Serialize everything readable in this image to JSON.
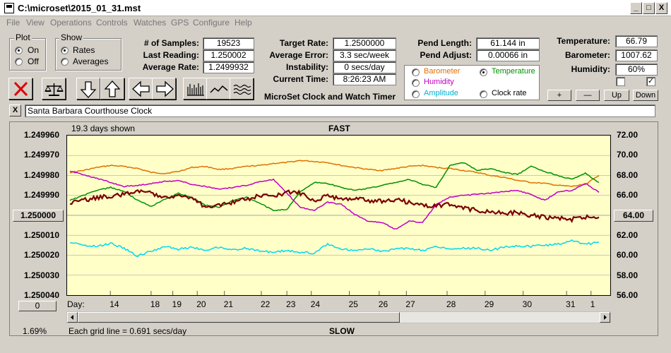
{
  "window": {
    "title": "C:\\microset\\2015_01_31.mst",
    "min": "_",
    "max": "□",
    "close": "X"
  },
  "menu": [
    "File",
    "View",
    "Operations",
    "Controls",
    "Watches",
    "GPS",
    "Configure",
    "Help"
  ],
  "plot_group": {
    "label": "Plot",
    "on": "On",
    "off": "Off"
  },
  "show_group": {
    "label": "Show",
    "rates": "Rates",
    "averages": "Averages"
  },
  "stats": {
    "samples_label": "# of Samples:",
    "samples": "19523",
    "last_label": "Last Reading:",
    "last": "1.250002",
    "avg_label": "Average Rate:",
    "avg": "1.2499932"
  },
  "rates": {
    "target_label": "Target Rate:",
    "target": "1.2500000",
    "error_label": "Average Error:",
    "error": "3.3 sec/week",
    "instab_label": "Instability:",
    "instab": "0 secs/day",
    "time_label": "Current Time:",
    "time": "8:26:23 AM"
  },
  "pend": {
    "length_label": "Pend Length:",
    "length": "61.144 in",
    "adjust_label": "Pend Adjust:",
    "adjust": "0.00066 in"
  },
  "env": {
    "temp_label": "Temperature:",
    "temp": "66.79",
    "baro_label": "Barometer:",
    "baro": "1007.62",
    "hum_label": "Humidity:",
    "hum": "60%"
  },
  "overlay": {
    "barometer": "Barometer",
    "temperature": "Temperature",
    "humidity": "Humidity",
    "amplitude": "Amplitude",
    "clockrate": "Clock rate",
    "colors": {
      "barometer": "#e07000",
      "temperature": "#009000",
      "humidity": "#c000c0",
      "amplitude": "#00b0d0",
      "clockrate": "#000000"
    }
  },
  "adjust_buttons": {
    "plus": "+",
    "minus": "—",
    "up": "Up",
    "down": "Down",
    "check2": "✓"
  },
  "app_name": "MicroSet Clock and Watch Timer",
  "clock_name": "Santa Barbara Courthouse Clock",
  "clear_button": "X",
  "plot": {
    "days_shown": "19.3 days shown",
    "fast": "FAST",
    "slow": "SLOW",
    "grid_note": "Each grid line = 0.691 secs/day",
    "pct": "1.69%",
    "center_button": "1.250000",
    "right_button": "64.00",
    "zero_button": "0",
    "day_label": "Day:"
  },
  "chart_data": {
    "type": "line",
    "y_left_ticks": [
      "1.249960",
      "1.249970",
      "1.249980",
      "1.249990",
      "1.250000",
      "1.250010",
      "1.250020",
      "1.250030",
      "1.250040"
    ],
    "y_right_ticks": [
      "72.00",
      "70.00",
      "68.00",
      "66.00",
      "64.00",
      "62.00",
      "60.00",
      "58.00",
      "56.00"
    ],
    "x_ticks": [
      "14",
      "18",
      "19",
      "20",
      "21",
      "22",
      "23",
      "24",
      "25",
      "26",
      "27",
      "28",
      "29",
      "30",
      "31",
      "1"
    ],
    "x_tick_pos": [
      0.09,
      0.165,
      0.205,
      0.25,
      0.3,
      0.368,
      0.415,
      0.46,
      0.53,
      0.585,
      0.635,
      0.71,
      0.78,
      0.85,
      0.93,
      0.975
    ],
    "series": [
      {
        "color": "#e07000",
        "values": [
          68.3,
          68.5,
          68.8,
          69.0,
          68.9,
          68.7,
          68.3,
          68.2,
          68.4,
          68.8,
          68.9,
          68.6,
          68.7,
          68.9,
          69.0,
          69.2,
          69.3,
          69.5,
          69.4,
          69.3,
          69.0,
          68.8,
          68.6,
          68.5,
          68.7,
          68.9,
          69.0,
          68.8,
          68.7,
          68.5,
          68.3,
          68.0,
          67.8,
          67.5,
          67.3,
          67.2,
          67.0,
          66.9,
          67.1,
          68.0
        ]
      },
      {
        "color": "#009000",
        "values": [
          65.5,
          66.0,
          66.5,
          66.8,
          66.4,
          65.5,
          64.9,
          65.6,
          66.2,
          65.8,
          65.0,
          64.8,
          65.5,
          65.8,
          65.2,
          64.5,
          64.6,
          66.4,
          67.3,
          67.2,
          66.8,
          66.5,
          66.7,
          67.0,
          67.3,
          67.6,
          67.1,
          66.8,
          69.0,
          69.3,
          68.5,
          68.7,
          68.3,
          68.1,
          68.9,
          68.4,
          68.0,
          67.6,
          68.2,
          67.3
        ]
      },
      {
        "color": "#c000c0",
        "values": [
          68.4,
          68.1,
          67.7,
          67.3,
          66.9,
          67.0,
          67.2,
          67.4,
          67.5,
          67.1,
          66.9,
          66.6,
          66.8,
          67.0,
          67.4,
          67.6,
          66.2,
          64.8,
          64.5,
          65.3,
          65.1,
          64.1,
          63.4,
          63.3,
          62.6,
          63.4,
          63.3,
          65.1,
          65.8,
          66.0,
          66.1,
          66.2,
          66.4,
          66.5,
          66.1,
          65.5,
          66.4,
          66.5,
          67.2,
          66.3
        ]
      },
      {
        "color": "#00d8f0",
        "values": [
          61.3,
          61.0,
          60.9,
          61.2,
          60.7,
          59.9,
          60.4,
          60.9,
          60.6,
          60.8,
          60.5,
          60.8,
          60.5,
          60.7,
          60.4,
          60.3,
          60.5,
          60.3,
          60.2,
          61.1,
          60.6,
          60.5,
          60.7,
          60.4,
          60.6,
          60.7,
          60.5,
          60.9,
          60.6,
          60.7,
          60.7,
          60.5,
          60.8,
          60.9,
          60.9,
          61.0,
          61.1,
          61.5,
          61.1,
          61.3
        ]
      },
      {
        "color": "#7a0000",
        "values": [
          65.2,
          65.5,
          65.8,
          65.9,
          66.1,
          66.5,
          66.2,
          65.9,
          66.0,
          65.7,
          64.8,
          65.1,
          65.3,
          65.6,
          66.0,
          65.8,
          66.4,
          66.2,
          65.5,
          66.0,
          65.6,
          65.8,
          65.5,
          65.4,
          65.6,
          65.3,
          65.0,
          64.9,
          65.1,
          64.7,
          64.5,
          64.4,
          64.2,
          64.3,
          64.0,
          63.8,
          63.7,
          63.6,
          63.8,
          63.8
        ]
      }
    ]
  }
}
